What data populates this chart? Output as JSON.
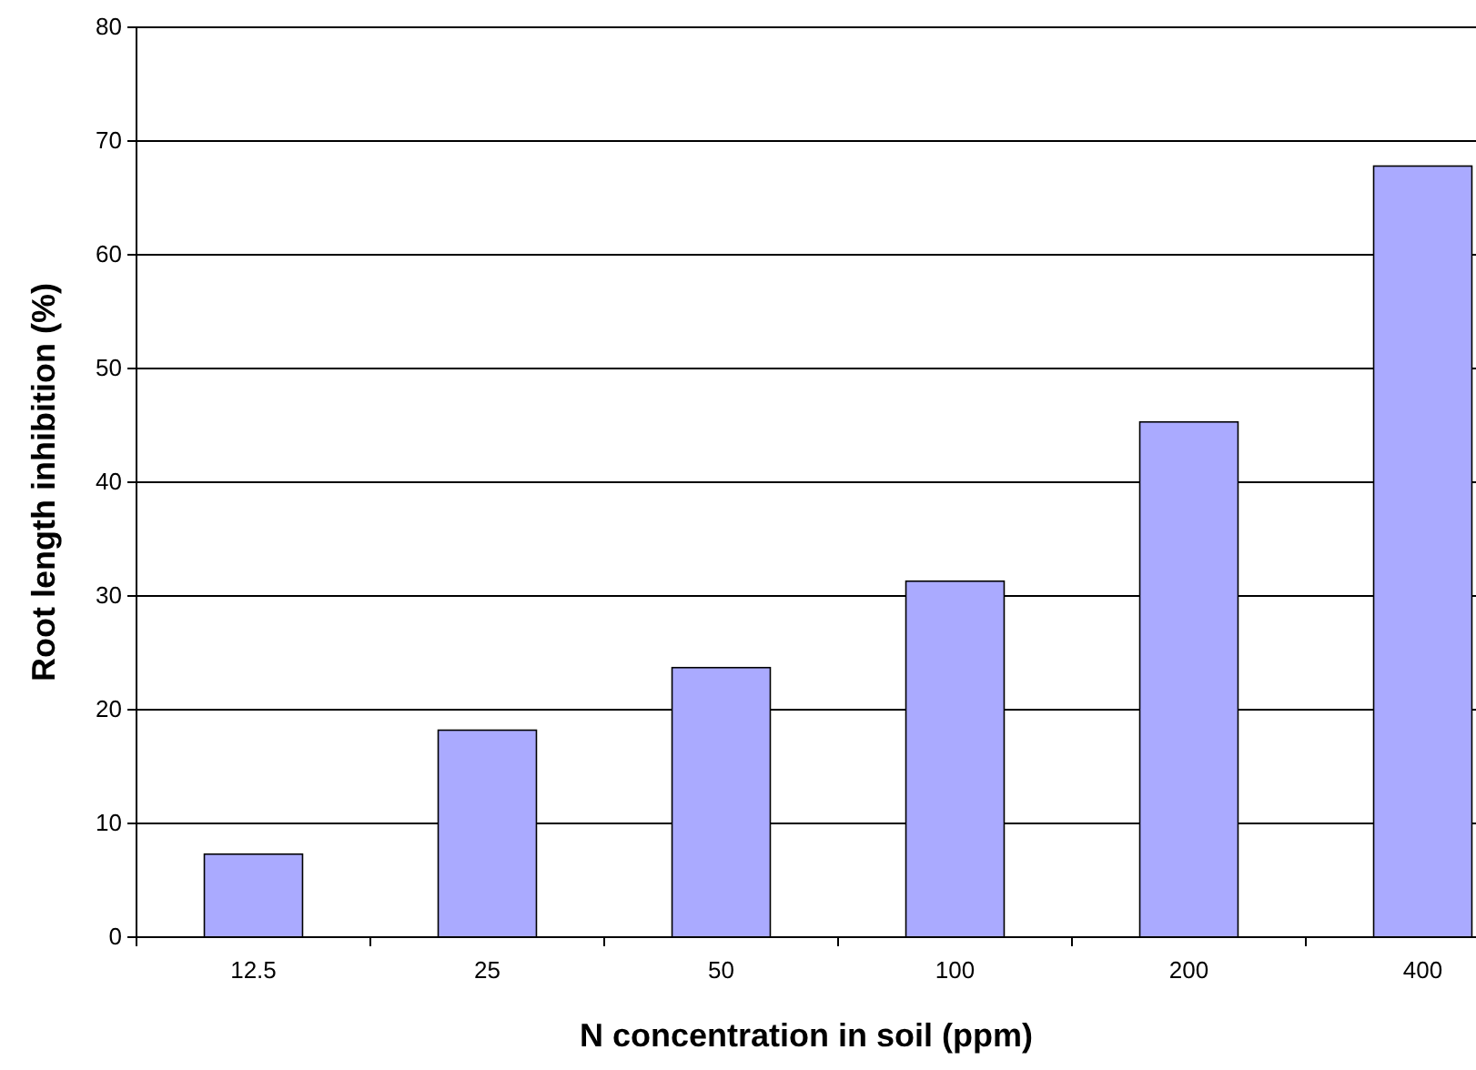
{
  "chart_data": {
    "type": "bar",
    "xlabel": "N concentration in soil (ppm)",
    "ylabel": "Root length inhibition (%)",
    "categories": [
      "12.5",
      "25",
      "50",
      "100",
      "200",
      "400"
    ],
    "values": [
      7.3,
      18.2,
      23.7,
      31.3,
      45.3,
      67.8
    ],
    "color": "#aaaaff",
    "ylim": [
      0,
      80
    ],
    "yticks": [
      0,
      10,
      20,
      30,
      40,
      50,
      60,
      70,
      80
    ],
    "grid": "y"
  }
}
